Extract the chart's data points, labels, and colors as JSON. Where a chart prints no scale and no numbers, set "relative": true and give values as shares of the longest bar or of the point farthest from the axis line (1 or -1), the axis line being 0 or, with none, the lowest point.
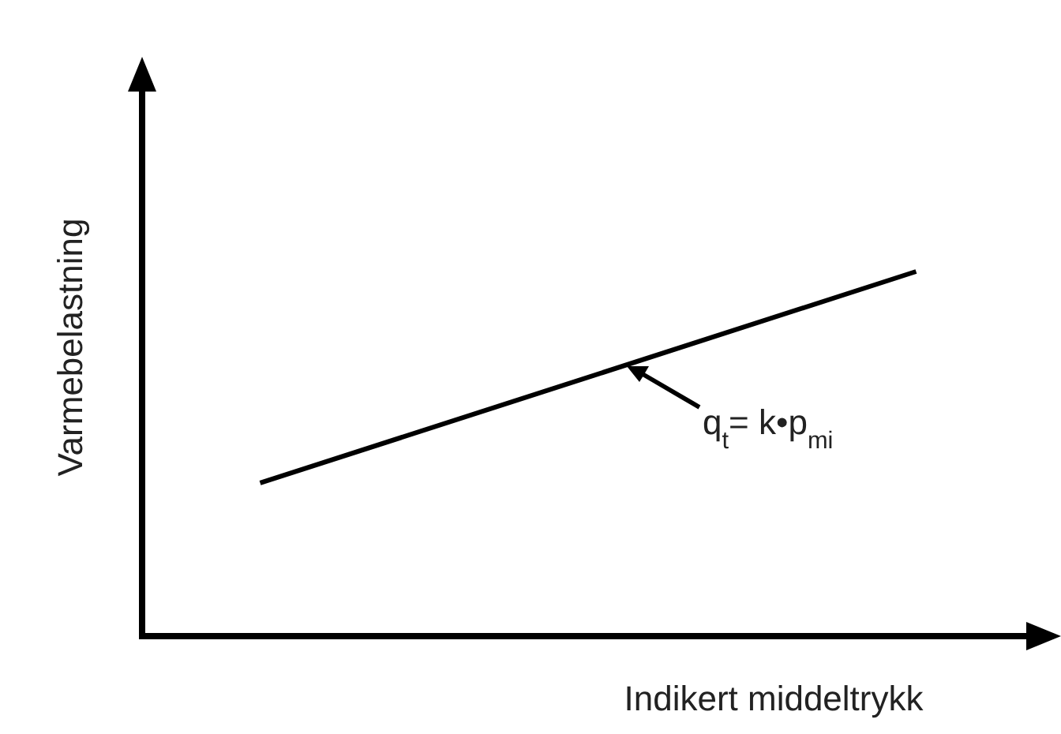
{
  "chart_data": {
    "type": "line",
    "relative": true,
    "categories": [
      null,
      null
    ],
    "values": [
      0.42,
      1
    ],
    "color": "#000000",
    "xlabel": "Indikert middeltrykk",
    "ylabel": "Varmebelastning",
    "annotations": [
      "q$_{t}$= k•p$_{mi}$"
    ],
    "marker": "none",
    "line_style": "solid"
  }
}
